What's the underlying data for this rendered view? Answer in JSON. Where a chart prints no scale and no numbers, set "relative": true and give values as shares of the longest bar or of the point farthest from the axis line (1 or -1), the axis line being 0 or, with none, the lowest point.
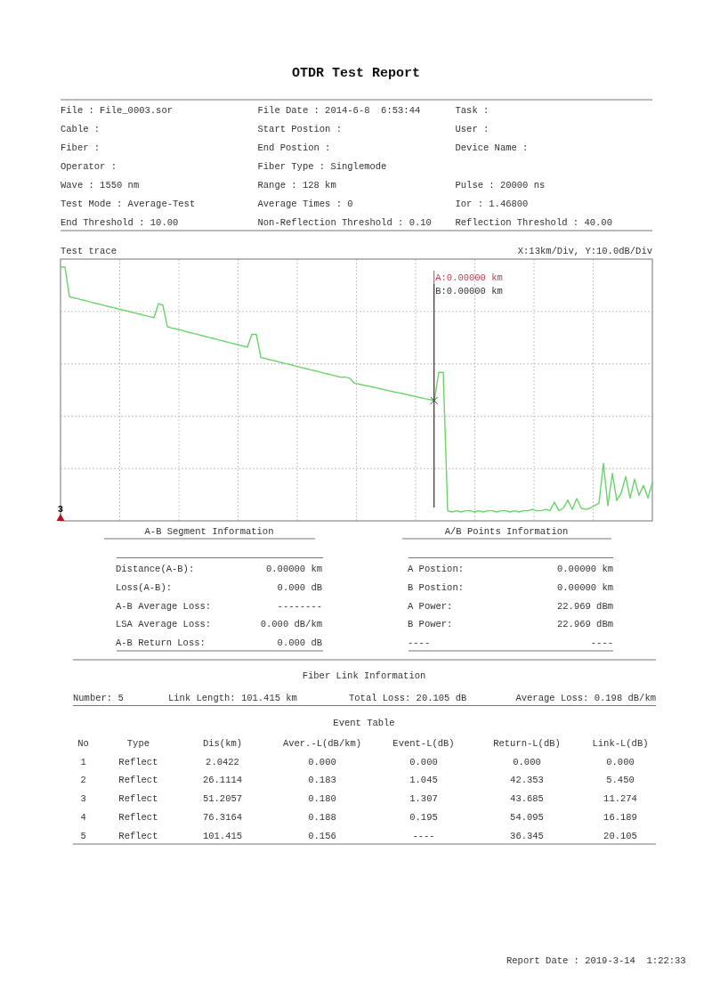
{
  "chart_data": {
    "type": "line",
    "title": "OTDR Test Report",
    "subtitle": "Test trace",
    "relative": true,
    "grid": true,
    "categories": [
      null,
      null,
      null,
      null,
      null,
      null,
      null,
      null,
      null,
      null,
      null,
      null,
      null,
      null,
      null,
      null,
      null,
      null,
      null,
      null,
      null,
      null,
      null,
      null,
      null,
      null,
      null,
      null,
      null,
      null,
      null,
      null,
      null,
      null,
      null,
      null,
      null,
      null,
      null,
      null,
      null,
      null,
      null,
      null,
      null,
      null,
      null,
      null,
      null,
      null,
      null,
      null,
      null,
      null,
      null,
      null,
      null,
      null,
      null,
      null,
      null,
      null,
      null,
      null,
      null,
      null,
      null,
      null,
      null,
      null,
      null,
      null,
      null,
      null,
      null,
      null,
      null,
      null,
      null,
      null,
      null,
      null,
      null,
      null,
      null,
      null,
      null,
      null,
      null,
      null,
      null,
      null,
      null,
      null,
      null,
      null,
      null,
      null,
      null,
      null,
      null,
      null,
      null,
      null,
      null,
      null,
      null,
      null,
      null,
      null,
      null,
      null,
      null,
      null,
      null,
      null,
      null,
      null,
      null,
      null,
      null,
      null,
      null,
      null,
      null,
      null,
      null,
      null,
      null,
      null,
      null,
      null,
      null,
      null
    ],
    "series": [
      {
        "color": "#6ad46a",
        "values": [
          1.0,
          1.0,
          0.883,
          0.879,
          0.875,
          0.87,
          0.866,
          0.861,
          0.857,
          0.853,
          0.848,
          0.844,
          0.84,
          0.835,
          0.831,
          0.827,
          0.822,
          0.818,
          0.814,
          0.809,
          0.805,
          0.801,
          0.856,
          0.85,
          0.765,
          0.76,
          0.756,
          0.752,
          0.747,
          0.742,
          0.738,
          0.734,
          0.729,
          0.725,
          0.72,
          0.716,
          0.711,
          0.707,
          0.702,
          0.698,
          0.694,
          0.689,
          0.685,
          0.735,
          0.735,
          0.644,
          0.64,
          0.635,
          0.631,
          0.627,
          0.622,
          0.618,
          0.614,
          0.609,
          0.605,
          0.601,
          0.596,
          0.592,
          0.588,
          0.583,
          0.579,
          0.575,
          0.57,
          0.566,
          0.567,
          0.562,
          0.543,
          0.539,
          0.535,
          0.532,
          0.528,
          0.524,
          0.52,
          0.516,
          0.512,
          0.508,
          0.505,
          0.501,
          0.497,
          0.493,
          0.489,
          0.485,
          0.481,
          0.478,
          0.474,
          0.585,
          0.585,
          0.04,
          0.035,
          0.04,
          0.035,
          0.04,
          0.04,
          0.035,
          0.04,
          0.035,
          0.04,
          0.04,
          0.035,
          0.04,
          0.04,
          0.035,
          0.04,
          0.035,
          0.04,
          0.04,
          0.045,
          0.04,
          0.04,
          0.045,
          0.04,
          0.073,
          0.04,
          0.05,
          0.082,
          0.045,
          0.088,
          0.05,
          0.045,
          0.05,
          0.06,
          0.07,
          0.226,
          0.06,
          0.187,
          0.08,
          0.11,
          0.175,
          0.09,
          0.164,
          0.1,
          0.14,
          0.09,
          0.152
        ]
      }
    ],
    "annotations": [
      "File : File_0003.sor",
      "File Date : 2014-6-8  6:53:44",
      "Task :",
      "Cable :",
      "Start Postion :",
      "User :",
      "Fiber :",
      "End Postion :",
      "Device Name :",
      "Operator :",
      "Fiber Type : Singlemode",
      "Wave : 1550 nm",
      "Range : 128 km",
      "Pulse : 20000 ns",
      "Test Mode : Average-Test",
      "Average Times : 0",
      "Ior : 1.46800",
      "End Threshold : 10.00",
      "Non-Reflection Threshold : 0.10",
      "Reflection Threshold : 40.00",
      "X:13km/Div, Y:10.0dB/Div",
      "3",
      "A-B Segment Information",
      "A/B Points Information",
      "Distance(A-B):",
      "0.00000 km",
      "Loss(A-B):",
      "0.000 dB",
      "A-B Average Loss:",
      "--------",
      "LSA Average Loss:",
      "0.000 dB/km",
      "A-B Return Loss:",
      "0.000 dB",
      "A Postion:",
      "0.00000 km",
      "B Postion:",
      "0.00000 km",
      "A Power:",
      "22.969 dBm",
      "B Power:",
      "22.969 dBm",
      "----",
      "----",
      "Fiber Link Information",
      "Number: 5",
      "Link Length: 101.415 km",
      "Total Loss: 20.105 dB",
      "Average Loss: 0.198 dB/km",
      "Event Table",
      "No",
      "Type",
      "Dis(km)",
      "Aver.-L(dB/km)",
      "Event-L(dB)",
      "Return-L(dB)",
      "Link-L(dB)",
      "1",
      "Reflect",
      "2.0422",
      "0.000",
      "0.000",
      "0.000",
      "0.000",
      "2",
      "Reflect",
      "26.1114",
      "0.183",
      "1.045",
      "42.353",
      "5.450",
      "3",
      "Reflect",
      "51.2057",
      "0.180",
      "1.307",
      "43.685",
      "11.274",
      "4",
      "Reflect",
      "76.3164",
      "0.188",
      "0.195",
      "54.095",
      "16.189",
      "5",
      "Reflect",
      "101.415",
      "0.156",
      "----",
      "36.345",
      "20.105",
      "Report Date : 2019-3-14  1:22:33",
      "A:0.00000 km",
      "B:0.00000 km"
    ]
  }
}
